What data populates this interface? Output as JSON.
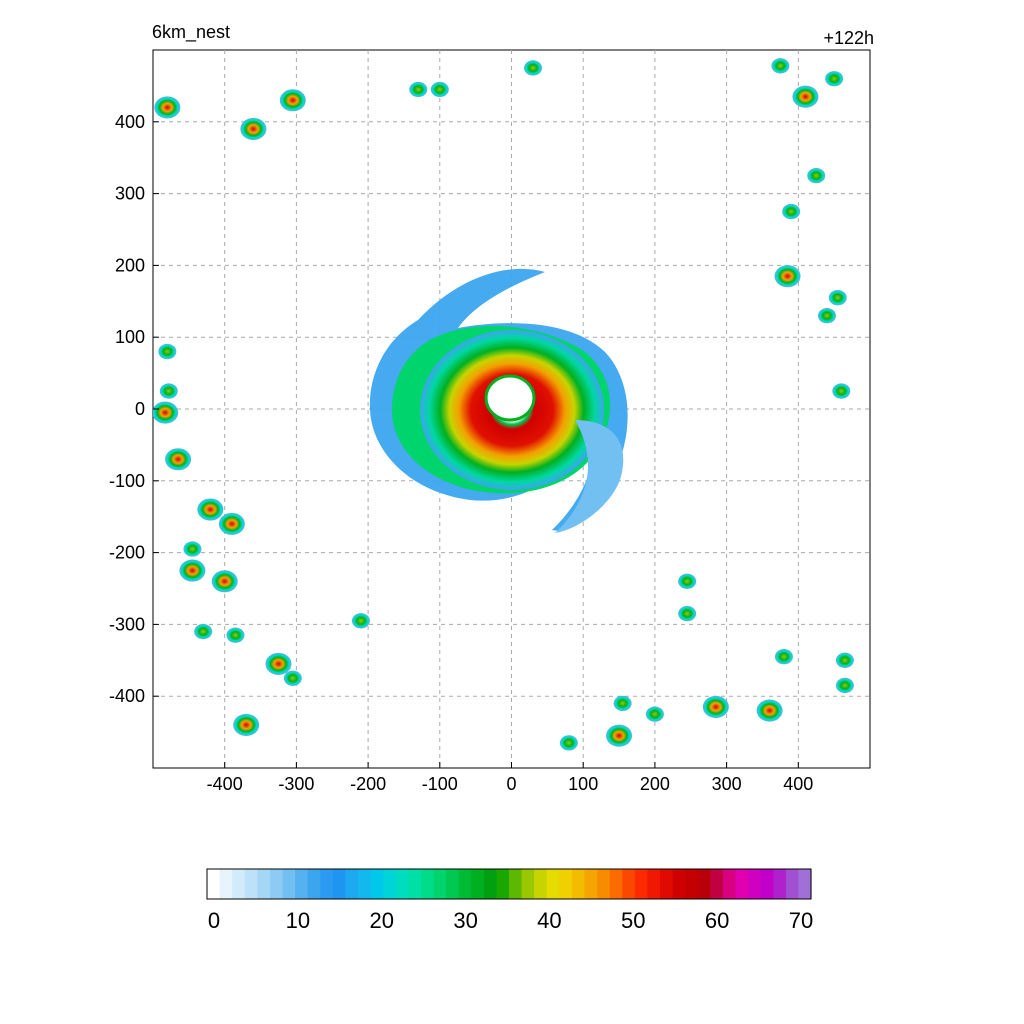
{
  "plot": {
    "title_left": "6km_nest",
    "title_right": "+122h",
    "x_ticks": [
      "-400",
      "-300",
      "-200",
      "-100",
      "0",
      "100",
      "200",
      "300",
      "400"
    ],
    "y_ticks": [
      "400",
      "300",
      "200",
      "100",
      "0",
      "-100",
      "-200",
      "-300",
      "-400"
    ],
    "x_tick_values": [
      -400,
      -300,
      -200,
      -100,
      0,
      100,
      200,
      300,
      400
    ],
    "y_tick_values": [
      400,
      300,
      200,
      100,
      0,
      -100,
      -200,
      -300,
      -400
    ],
    "xlim": [
      -500,
      500
    ],
    "ylim": [
      -500,
      500
    ],
    "grid": "dashed"
  },
  "colorbar": {
    "ticks": [
      "0",
      "10",
      "20",
      "30",
      "40",
      "50",
      "60",
      "70"
    ],
    "tick_values": [
      0,
      10,
      20,
      30,
      40,
      50,
      60,
      70
    ],
    "range": [
      0,
      72
    ],
    "colors": [
      "#ffffff",
      "#e8f4fc",
      "#d2ebfa",
      "#bde1f8",
      "#a6d6f6",
      "#8ecbf4",
      "#72bff2",
      "#55b1f0",
      "#3ba5ee",
      "#2a9bf0",
      "#1e95f0",
      "#1ea8f0",
      "#12b8ee",
      "#00c8ea",
      "#00d4d8",
      "#00dcc0",
      "#00e0a6",
      "#00dc8a",
      "#00d46c",
      "#00c850",
      "#00bc34",
      "#00b020",
      "#00a010",
      "#1aa800",
      "#5cb800",
      "#9ac800",
      "#c8d400",
      "#e4dc00",
      "#f0d000",
      "#f4bc00",
      "#f6a400",
      "#f88c00",
      "#fa6c00",
      "#fb4800",
      "#fc2a00",
      "#f01800",
      "#e00a00",
      "#d00000",
      "#c40000",
      "#b80008",
      "#c00040",
      "#d80080",
      "#e000b0",
      "#d000c0",
      "#c000c8",
      "#b020cc",
      "#a050d0",
      "#a070d8"
    ]
  }
}
